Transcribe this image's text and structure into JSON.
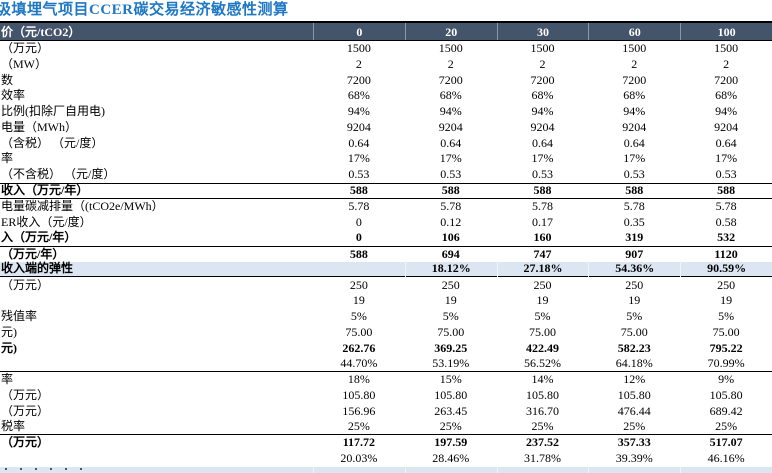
{
  "title": "圾填埋气项目CCER碳交易经济敏感性测算",
  "colors": {
    "title_blue": "#1f78c4",
    "header_bg": "#44546a",
    "header_text": "#ffffff",
    "highlight_row_bg": "#dce6f2",
    "rule_line": "#000000"
  },
  "bottom_partial_row_visible": true,
  "table": {
    "header": {
      "label": "价（元/tCO2）",
      "columns": [
        "0",
        "20",
        "30",
        "60",
        "100"
      ]
    },
    "rows": [
      {
        "label": "（万元）",
        "values": [
          "1500",
          "1500",
          "1500",
          "1500",
          "1500"
        ]
      },
      {
        "label": "（MW）",
        "values": [
          "2",
          "2",
          "2",
          "2",
          "2"
        ]
      },
      {
        "label": "数",
        "values": [
          "7200",
          "7200",
          "7200",
          "7200",
          "7200"
        ]
      },
      {
        "label": "效率",
        "values": [
          "68%",
          "68%",
          "68%",
          "68%",
          "68%"
        ]
      },
      {
        "label": "比例(扣除厂自用电)",
        "values": [
          "94%",
          "94%",
          "94%",
          "94%",
          "94%"
        ]
      },
      {
        "label": "电量（MWh）",
        "values": [
          "9204",
          "9204",
          "9204",
          "9204",
          "9204"
        ]
      },
      {
        "label": "（含税） （元/度）",
        "values": [
          "0.64",
          "0.64",
          "0.64",
          "0.64",
          "0.64"
        ]
      },
      {
        "label": "率",
        "values": [
          "17%",
          "17%",
          "17%",
          "17%",
          "17%"
        ]
      },
      {
        "label": "（不含税） （元/度）",
        "values": [
          "0.53",
          "0.53",
          "0.53",
          "0.53",
          "0.53"
        ]
      },
      {
        "label": "收入（万元/年）",
        "bold": true,
        "border_top": true,
        "border_bottom": true,
        "values": [
          "588",
          "588",
          "588",
          "588",
          "588"
        ]
      },
      {
        "label": "电量碳减排量（(tCO2e/MWh）",
        "values": [
          "5.78",
          "5.78",
          "5.78",
          "5.78",
          "5.78"
        ]
      },
      {
        "label": "ER收入（元/度）",
        "values": [
          "0",
          "0.12",
          "0.17",
          "0.35",
          "0.58"
        ]
      },
      {
        "label": "入（万元/年）",
        "bold": true,
        "values": [
          "0",
          "106",
          "160",
          "319",
          "532"
        ]
      },
      {
        "label": "（万元/年）",
        "bold": true,
        "border_top": true,
        "values": [
          "588",
          "694",
          "747",
          "907",
          "1120"
        ]
      },
      {
        "label": "收入端的弹性",
        "bold": true,
        "highlight": true,
        "border_bottom": true,
        "values": [
          "",
          "18.12%",
          "27.18%",
          "54.36%",
          "90.59%"
        ]
      },
      {
        "label": "（万元）",
        "values": [
          "250",
          "250",
          "250",
          "250",
          "250"
        ]
      },
      {
        "label": "",
        "values": [
          "19",
          "19",
          "19",
          "19",
          "19"
        ]
      },
      {
        "label": "残值率",
        "values": [
          "5%",
          "5%",
          "5%",
          "5%",
          "5%"
        ]
      },
      {
        "label": "元)",
        "values": [
          "75.00",
          "75.00",
          "75.00",
          "75.00",
          "75.00"
        ]
      },
      {
        "label": "元)",
        "bold": true,
        "values": [
          "262.76",
          "369.25",
          "422.49",
          "582.23",
          "795.22"
        ]
      },
      {
        "label": "",
        "border_bottom": true,
        "values": [
          "44.70%",
          "53.19%",
          "56.52%",
          "64.18%",
          "70.99%"
        ]
      },
      {
        "label": "率",
        "values": [
          "18%",
          "15%",
          "14%",
          "12%",
          "9%"
        ]
      },
      {
        "label": "（万元）",
        "values": [
          "105.80",
          "105.80",
          "105.80",
          "105.80",
          "105.80"
        ]
      },
      {
        "label": "（万元）",
        "values": [
          "156.96",
          "263.45",
          "316.70",
          "476.44",
          "689.42"
        ]
      },
      {
        "label": "税率",
        "border_bottom": true,
        "values": [
          "25%",
          "25%",
          "25%",
          "25%",
          "25%"
        ]
      },
      {
        "label": "（万元）",
        "bold": true,
        "values": [
          "117.72",
          "197.59",
          "237.52",
          "357.33",
          "517.07"
        ]
      },
      {
        "label": "",
        "values": [
          "20.03%",
          "28.46%",
          "31.78%",
          "39.39%",
          "46.16%"
        ]
      }
    ]
  }
}
